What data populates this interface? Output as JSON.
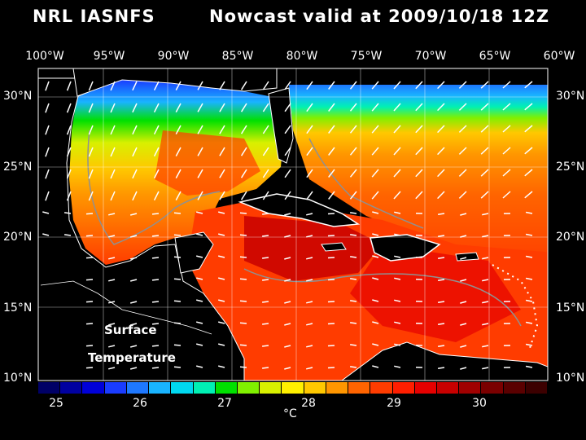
{
  "header": {
    "model": "NRL IASNFS",
    "type": "Nowcast",
    "valid": "valid at 2009/10/18 12Z"
  },
  "lon_labels": [
    "100°W",
    "95°W",
    "90°W",
    "85°W",
    "80°W",
    "75°W",
    "70°W",
    "65°W",
    "60°W"
  ],
  "lat_labels": [
    "30°N",
    "25°N",
    "20°N",
    "15°N",
    "10°N"
  ],
  "overlay": {
    "line1": "Surface",
    "line2": "Temperature"
  },
  "colorbar": {
    "ticks": [
      "25",
      "26",
      "27",
      "28",
      "29",
      "30"
    ],
    "unit": "°C",
    "colors": [
      "#000066",
      "#0000a0",
      "#0000d8",
      "#1a3cff",
      "#1e78ff",
      "#19b4ff",
      "#00d8f0",
      "#00f0b4",
      "#00e000",
      "#80f000",
      "#d8f000",
      "#fff000",
      "#ffc800",
      "#ff9600",
      "#ff6400",
      "#ff3c00",
      "#ff1e00",
      "#e60000",
      "#c80000",
      "#a00000",
      "#7a0000",
      "#5a0000",
      "#3c0000"
    ]
  },
  "map": {
    "lon_range": [
      -100,
      -60
    ],
    "lat_range": [
      10,
      31
    ],
    "colors": {
      "gulf_north": "#19b4ff",
      "warm": "#ff3c00",
      "hot": "#a00000",
      "land": "#000000",
      "coast": "#ffffff",
      "contour": "#909090"
    }
  }
}
